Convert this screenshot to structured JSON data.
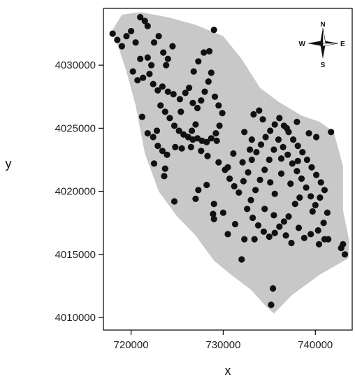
{
  "chart_data": {
    "type": "scatter",
    "title": "",
    "xlabel": "x",
    "ylabel": "y",
    "xlim": [
      717000,
      744000
    ],
    "ylim": [
      4009000,
      4034500
    ],
    "xticks": [
      720000,
      730000,
      740000
    ],
    "yticks": [
      4010000,
      4015000,
      4020000,
      4025000,
      4030000
    ],
    "xtick_labels": [
      "720000",
      "730000",
      "740000"
    ],
    "ytick_labels": [
      "4010000",
      "4015000",
      "4020000",
      "4025000",
      "4030000"
    ],
    "grid": false,
    "colors": {
      "region": "#c8c8c8",
      "points": "#111111",
      "axis": "#000000"
    },
    "region_outline": [
      [
        718000,
        4032800
      ],
      [
        719000,
        4034000
      ],
      [
        721000,
        4034200
      ],
      [
        724000,
        4033800
      ],
      [
        727000,
        4033200
      ],
      [
        730000,
        4032300
      ],
      [
        732000,
        4030500
      ],
      [
        734000,
        4028200
      ],
      [
        736000,
        4027100
      ],
      [
        738500,
        4026000
      ],
      [
        740500,
        4025500
      ],
      [
        742000,
        4024700
      ],
      [
        743000,
        4022000
      ],
      [
        743000,
        4018500
      ],
      [
        743700,
        4016000
      ],
      [
        743600,
        4014700
      ],
      [
        740500,
        4013400
      ],
      [
        737500,
        4011800
      ],
      [
        735500,
        4010300
      ],
      [
        734500,
        4011000
      ],
      [
        733000,
        4012200
      ],
      [
        731000,
        4013300
      ],
      [
        729000,
        4014500
      ],
      [
        727000,
        4016500
      ],
      [
        725000,
        4018000
      ],
      [
        723000,
        4020000
      ],
      [
        721500,
        4023000
      ],
      [
        720500,
        4026800
      ],
      [
        719500,
        4029500
      ]
    ],
    "compass": {
      "north": "N",
      "south": "S",
      "east": "E",
      "west": "W"
    },
    "points": [
      [
        718000,
        4032500
      ],
      [
        718500,
        4032000
      ],
      [
        719000,
        4031500
      ],
      [
        719500,
        4032300
      ],
      [
        720000,
        4032700
      ],
      [
        720500,
        4031800
      ],
      [
        721000,
        4033800
      ],
      [
        721500,
        4033500
      ],
      [
        721800,
        4033100
      ],
      [
        722500,
        4031800
      ],
      [
        723000,
        4032300
      ],
      [
        723500,
        4031000
      ],
      [
        724000,
        4030500
      ],
      [
        724500,
        4031500
      ],
      [
        723800,
        4030000
      ],
      [
        721000,
        4030500
      ],
      [
        720200,
        4029500
      ],
      [
        720700,
        4028800
      ],
      [
        721300,
        4029000
      ],
      [
        722000,
        4029300
      ],
      [
        722400,
        4028500
      ],
      [
        722900,
        4028000
      ],
      [
        723400,
        4028300
      ],
      [
        724000,
        4027900
      ],
      [
        724600,
        4027700
      ],
      [
        725300,
        4027300
      ],
      [
        725900,
        4027800
      ],
      [
        726300,
        4028200
      ],
      [
        726700,
        4027000
      ],
      [
        727200,
        4026600
      ],
      [
        727600,
        4027200
      ],
      [
        728000,
        4027900
      ],
      [
        728400,
        4028700
      ],
      [
        728700,
        4029400
      ],
      [
        729100,
        4027500
      ],
      [
        729500,
        4026800
      ],
      [
        729900,
        4026200
      ],
      [
        727300,
        4030300
      ],
      [
        727900,
        4031000
      ],
      [
        728500,
        4031100
      ],
      [
        726800,
        4029500
      ],
      [
        729000,
        4032800
      ],
      [
        723200,
        4026800
      ],
      [
        723700,
        4026300
      ],
      [
        724200,
        4025800
      ],
      [
        724700,
        4025200
      ],
      [
        725200,
        4024800
      ],
      [
        725700,
        4024500
      ],
      [
        726200,
        4024300
      ],
      [
        726700,
        4024100
      ],
      [
        727200,
        4024200
      ],
      [
        727700,
        4024000
      ],
      [
        728200,
        4023900
      ],
      [
        728700,
        4024200
      ],
      [
        729200,
        4024600
      ],
      [
        729600,
        4025200
      ],
      [
        722800,
        4024800
      ],
      [
        722400,
        4024300
      ],
      [
        722900,
        4023600
      ],
      [
        723400,
        4023200
      ],
      [
        723900,
        4022900
      ],
      [
        722500,
        4022200
      ],
      [
        723600,
        4021200
      ],
      [
        724800,
        4023500
      ],
      [
        726500,
        4023500
      ],
      [
        727600,
        4023200
      ],
      [
        728300,
        4022800
      ],
      [
        729500,
        4022300
      ],
      [
        730200,
        4021700
      ],
      [
        730700,
        4021000
      ],
      [
        731200,
        4020400
      ],
      [
        731700,
        4019900
      ],
      [
        732200,
        4020800
      ],
      [
        732700,
        4021500
      ],
      [
        732100,
        4022300
      ],
      [
        733100,
        4022500
      ],
      [
        733600,
        4023100
      ],
      [
        734100,
        4023700
      ],
      [
        734600,
        4024300
      ],
      [
        735100,
        4024800
      ],
      [
        735600,
        4025300
      ],
      [
        736100,
        4025800
      ],
      [
        736600,
        4025200
      ],
      [
        737100,
        4024700
      ],
      [
        737600,
        4024100
      ],
      [
        738100,
        4023600
      ],
      [
        738600,
        4023100
      ],
      [
        739100,
        4022500
      ],
      [
        739600,
        4021900
      ],
      [
        740100,
        4021300
      ],
      [
        740600,
        4020700
      ],
      [
        741000,
        4020100
      ],
      [
        740500,
        4019500
      ],
      [
        740000,
        4018900
      ],
      [
        739500,
        4019600
      ],
      [
        739000,
        4020300
      ],
      [
        738500,
        4021000
      ],
      [
        738000,
        4021600
      ],
      [
        737500,
        4022200
      ],
      [
        737000,
        4022900
      ],
      [
        736500,
        4023500
      ],
      [
        736000,
        4024100
      ],
      [
        735500,
        4023300
      ],
      [
        735000,
        4022500
      ],
      [
        734500,
        4021700
      ],
      [
        734000,
        4020900
      ],
      [
        733500,
        4020100
      ],
      [
        733000,
        4019300
      ],
      [
        732600,
        4018600
      ],
      [
        733200,
        4017900
      ],
      [
        733800,
        4017300
      ],
      [
        734400,
        4016800
      ],
      [
        735000,
        4016400
      ],
      [
        735600,
        4016700
      ],
      [
        736100,
        4017200
      ],
      [
        736600,
        4017600
      ],
      [
        737100,
        4018000
      ],
      [
        736800,
        4016500
      ],
      [
        737400,
        4015900
      ],
      [
        738200,
        4017100
      ],
      [
        738800,
        4016300
      ],
      [
        739500,
        4016600
      ],
      [
        740300,
        4016900
      ],
      [
        740900,
        4017500
      ],
      [
        741300,
        4018300
      ],
      [
        741000,
        4016200
      ],
      [
        740400,
        4015800
      ],
      [
        742800,
        4015500
      ],
      [
        743200,
        4015000
      ],
      [
        743000,
        4015800
      ],
      [
        735400,
        4012300
      ],
      [
        735200,
        4011000
      ],
      [
        732300,
        4016200
      ],
      [
        733400,
        4016200
      ],
      [
        732000,
        4014600
      ],
      [
        730500,
        4016600
      ],
      [
        729000,
        4017800
      ],
      [
        728900,
        4018200
      ],
      [
        727000,
        4019400
      ],
      [
        727300,
        4020100
      ],
      [
        728200,
        4020500
      ],
      [
        729000,
        4019000
      ],
      [
        730000,
        4018300
      ],
      [
        731300,
        4017400
      ],
      [
        724700,
        4019200
      ],
      [
        723700,
        4021800
      ],
      [
        721800,
        4024600
      ],
      [
        721200,
        4025900
      ],
      [
        725400,
        4026300
      ],
      [
        727000,
        4025300
      ],
      [
        725500,
        4023400
      ],
      [
        733300,
        4026100
      ],
      [
        733900,
        4026400
      ],
      [
        734300,
        4025700
      ],
      [
        733100,
        4024100
      ],
      [
        736900,
        4025000
      ],
      [
        738000,
        4025500
      ],
      [
        739300,
        4024600
      ],
      [
        740100,
        4024300
      ],
      [
        741700,
        4024700
      ],
      [
        738300,
        4019500
      ],
      [
        737800,
        4019000
      ],
      [
        735100,
        4020700
      ],
      [
        736300,
        4021400
      ],
      [
        734500,
        4018600
      ],
      [
        735500,
        4018100
      ],
      [
        738100,
        4022400
      ],
      [
        736300,
        4022600
      ],
      [
        732300,
        4024700
      ],
      [
        731100,
        4023000
      ],
      [
        722200,
        4030000
      ],
      [
        721800,
        4030600
      ],
      [
        726600,
        4024800
      ],
      [
        729300,
        4024000
      ],
      [
        735600,
        4019800
      ],
      [
        739700,
        4018400
      ],
      [
        741400,
        4016200
      ],
      [
        737300,
        4020600
      ],
      [
        732900,
        4023300
      ],
      [
        730500,
        4021900
      ]
    ]
  }
}
